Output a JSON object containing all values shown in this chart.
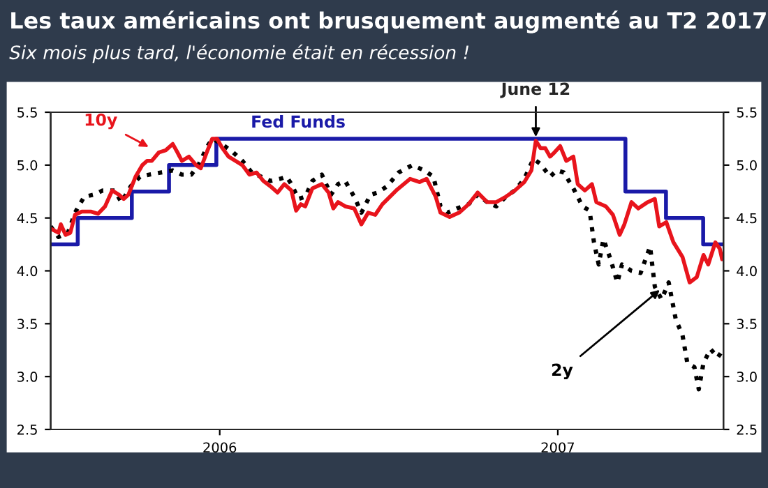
{
  "chart_data": {
    "type": "line",
    "title": "Les taux américains ont brusquement augmenté au T2 2017",
    "subtitle": "Six mois plus tard, l'économie était en récession !",
    "xlim": [
      2005.5,
      2007.49
    ],
    "xticks": [
      {
        "value": 2006.0,
        "label": "2006"
      },
      {
        "value": 2007.0,
        "label": "2007"
      }
    ],
    "ylim": [
      2.5,
      5.5
    ],
    "yticks": [
      2.5,
      {
        "value": 3,
        "label": "3.0"
      },
      3.5,
      {
        "value": 4,
        "label": "4.0"
      },
      4.5,
      {
        "value": 5,
        "label": "5.0"
      },
      5.5
    ],
    "y2lim": [
      2.5,
      5.5
    ],
    "y2ticks": [
      2.5,
      {
        "value": 3,
        "label": "3.0"
      },
      3.5,
      {
        "value": 4,
        "label": "4.0"
      },
      4.5,
      {
        "value": 5,
        "label": "5.0"
      },
      5.5
    ],
    "grid": false,
    "legend": false,
    "annotations": [
      {
        "text": "June 12",
        "x": 2006.935,
        "y": 5.23
      }
    ],
    "series": [
      {
        "name": "Fed Funds",
        "type": "step",
        "color": "#1a1aa8",
        "line_style": "solid",
        "x": [
          2005.5,
          2005.58,
          2005.74,
          2005.85,
          2005.99,
          2007.2,
          2007.32,
          2007.43,
          2007.49
        ],
        "values": [
          4.25,
          4.5,
          4.75,
          5.0,
          5.25,
          4.75,
          4.5,
          4.25,
          4.25
        ]
      },
      {
        "name": "2y",
        "color": "#000000",
        "line_style": "dotted",
        "x": [
          2005.5,
          2005.523,
          2005.551,
          2005.572,
          2005.599,
          2005.627,
          2005.654,
          2005.689,
          2005.709,
          2005.737,
          2005.764,
          2005.792,
          2005.826,
          2005.861,
          2005.888,
          2005.916,
          2005.937,
          2005.964,
          2005.978,
          2006.006,
          2006.04,
          2006.067,
          2006.095,
          2006.123,
          2006.15,
          2006.178,
          2006.198,
          2006.212,
          2006.233,
          2006.253,
          2006.274,
          2006.302,
          2006.329,
          2006.35,
          2006.371,
          2006.398,
          2006.419,
          2006.446,
          2006.467,
          2006.495,
          2006.529,
          2006.57,
          2006.605,
          2006.632,
          2006.653,
          2006.674,
          2006.701,
          2006.736,
          2006.763,
          2006.791,
          2006.818,
          2006.846,
          2006.873,
          2006.901,
          2006.928,
          2006.949,
          2006.977,
          2006.997,
          2007.018,
          2007.046,
          2007.073,
          2007.094,
          2007.107,
          2007.121,
          2007.135,
          2007.156,
          2007.176,
          2007.19,
          2007.218,
          2007.245,
          2007.273,
          2007.287,
          2007.307,
          2007.328,
          2007.349,
          2007.369,
          2007.383,
          2007.404,
          2007.417,
          2007.431,
          2007.452,
          2007.473,
          2007.486
        ],
        "values": [
          4.42,
          4.32,
          4.36,
          4.55,
          4.7,
          4.72,
          4.76,
          4.76,
          4.65,
          4.8,
          4.89,
          4.91,
          4.93,
          4.95,
          4.91,
          4.91,
          5.0,
          5.18,
          5.25,
          5.2,
          5.12,
          5.04,
          4.93,
          4.89,
          4.85,
          4.87,
          4.89,
          4.82,
          4.68,
          4.7,
          4.85,
          4.91,
          4.72,
          4.82,
          4.85,
          4.7,
          4.55,
          4.72,
          4.74,
          4.8,
          4.93,
          5.0,
          4.95,
          4.89,
          4.61,
          4.55,
          4.59,
          4.63,
          4.72,
          4.65,
          4.61,
          4.7,
          4.76,
          4.87,
          5.06,
          5.01,
          4.89,
          4.95,
          4.93,
          4.78,
          4.61,
          4.57,
          4.27,
          4.06,
          4.3,
          4.11,
          3.89,
          4.06,
          4.0,
          3.98,
          4.23,
          3.85,
          3.73,
          3.89,
          3.54,
          3.39,
          3.13,
          3.09,
          2.88,
          3.13,
          3.26,
          3.18,
          3.24
        ]
      },
      {
        "name": "10y",
        "color": "#e8141c",
        "line_style": "solid",
        "x": [
          2005.5,
          2005.523,
          2005.53,
          2005.544,
          2005.558,
          2005.572,
          2005.592,
          2005.62,
          2005.64,
          2005.661,
          2005.682,
          2005.702,
          2005.716,
          2005.73,
          2005.751,
          2005.771,
          2005.785,
          2005.799,
          2005.82,
          2005.84,
          2005.861,
          2005.875,
          2005.888,
          2005.909,
          2005.93,
          2005.944,
          2005.964,
          2005.978,
          2005.992,
          2006.006,
          2006.026,
          2006.047,
          2006.067,
          2006.088,
          2006.109,
          2006.129,
          2006.15,
          2006.171,
          2006.191,
          2006.212,
          2006.226,
          2006.24,
          2006.253,
          2006.274,
          2006.302,
          2006.322,
          2006.336,
          2006.35,
          2006.371,
          2006.398,
          2006.419,
          2006.439,
          2006.46,
          2006.481,
          2006.522,
          2006.563,
          2006.591,
          2006.612,
          2006.639,
          2006.653,
          2006.68,
          2006.708,
          2006.736,
          2006.763,
          2006.791,
          2006.818,
          2006.846,
          2006.873,
          2006.901,
          2006.922,
          2006.935,
          2006.949,
          2006.963,
          2006.977,
          2006.99,
          2007.007,
          2007.025,
          2007.046,
          2007.059,
          2007.08,
          2007.101,
          2007.114,
          2007.142,
          2007.163,
          2007.183,
          2007.197,
          2007.218,
          2007.238,
          2007.266,
          2007.287,
          2007.3,
          2007.321,
          2007.342,
          2007.369,
          2007.39,
          2007.411,
          2007.431,
          2007.445,
          2007.466,
          2007.479,
          2007.486
        ],
        "values": [
          4.4,
          4.36,
          4.44,
          4.34,
          4.36,
          4.53,
          4.56,
          4.56,
          4.54,
          4.61,
          4.76,
          4.72,
          4.68,
          4.72,
          4.89,
          5.0,
          5.04,
          5.04,
          5.12,
          5.14,
          5.2,
          5.12,
          5.04,
          5.08,
          5.0,
          4.97,
          5.14,
          5.25,
          5.25,
          5.17,
          5.08,
          5.04,
          5.0,
          4.91,
          4.93,
          4.85,
          4.8,
          4.74,
          4.82,
          4.76,
          4.57,
          4.63,
          4.61,
          4.78,
          4.82,
          4.74,
          4.59,
          4.65,
          4.61,
          4.59,
          4.44,
          4.55,
          4.53,
          4.63,
          4.76,
          4.87,
          4.84,
          4.87,
          4.7,
          4.55,
          4.51,
          4.55,
          4.63,
          4.74,
          4.65,
          4.65,
          4.7,
          4.76,
          4.84,
          4.95,
          5.23,
          5.16,
          5.16,
          5.08,
          5.12,
          5.18,
          5.04,
          5.08,
          4.82,
          4.76,
          4.82,
          4.65,
          4.61,
          4.53,
          4.34,
          4.44,
          4.65,
          4.59,
          4.65,
          4.68,
          4.42,
          4.46,
          4.27,
          4.13,
          3.89,
          3.94,
          4.15,
          4.06,
          4.27,
          4.21,
          4.11
        ]
      }
    ]
  }
}
